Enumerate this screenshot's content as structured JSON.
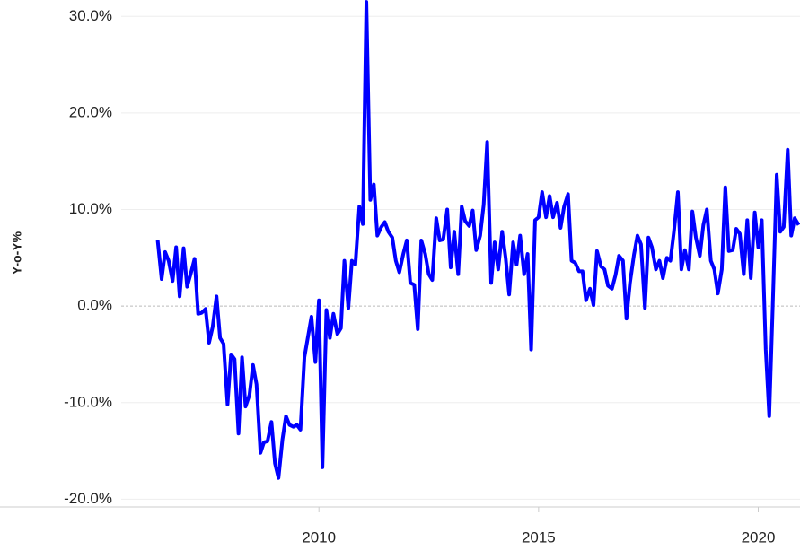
{
  "chart_data": {
    "type": "line",
    "y_label": "Y-o-Y%",
    "xlim": [
      2005.5,
      2020.95
    ],
    "xticks": [
      2010,
      2015,
      2020
    ],
    "ylim": [
      -20.8,
      31.7
    ],
    "yticks": [
      {
        "value": -20,
        "label": "-20.0%"
      },
      {
        "value": -10,
        "label": "-10.0%"
      },
      {
        "value": 0,
        "label": "0.0%"
      },
      {
        "value": 10,
        "label": "10.0%"
      },
      {
        "value": 20,
        "label": "20.0%"
      },
      {
        "value": 30,
        "label": "30.0%"
      }
    ],
    "grid": true,
    "series": [
      {
        "name": "Y-o-Y%",
        "color": "#0000ff",
        "x": [
          2006.33,
          2006.42,
          2006.5,
          2006.58,
          2006.67,
          2006.75,
          2006.83,
          2006.92,
          2007.0,
          2007.08,
          2007.17,
          2007.25,
          2007.33,
          2007.42,
          2007.5,
          2007.58,
          2007.67,
          2007.75,
          2007.83,
          2007.92,
          2008.0,
          2008.08,
          2008.17,
          2008.25,
          2008.33,
          2008.42,
          2008.5,
          2008.58,
          2008.67,
          2008.75,
          2008.83,
          2008.92,
          2009.0,
          2009.08,
          2009.17,
          2009.25,
          2009.33,
          2009.42,
          2009.5,
          2009.58,
          2009.67,
          2009.75,
          2009.83,
          2009.92,
          2010.0,
          2010.08,
          2010.17,
          2010.25,
          2010.33,
          2010.42,
          2010.5,
          2010.58,
          2010.67,
          2010.75,
          2010.83,
          2010.92,
          2011.0,
          2011.08,
          2011.17,
          2011.25,
          2011.33,
          2011.42,
          2011.5,
          2011.58,
          2011.67,
          2011.75,
          2011.83,
          2011.92,
          2012.0,
          2012.08,
          2012.17,
          2012.25,
          2012.33,
          2012.42,
          2012.5,
          2012.58,
          2012.67,
          2012.75,
          2012.83,
          2012.92,
          2013.0,
          2013.08,
          2013.17,
          2013.25,
          2013.33,
          2013.42,
          2013.5,
          2013.58,
          2013.67,
          2013.75,
          2013.83,
          2013.92,
          2014.0,
          2014.08,
          2014.17,
          2014.25,
          2014.33,
          2014.42,
          2014.5,
          2014.58,
          2014.67,
          2014.75,
          2014.83,
          2014.92,
          2015.0,
          2015.08,
          2015.17,
          2015.25,
          2015.33,
          2015.42,
          2015.5,
          2015.58,
          2015.67,
          2015.75,
          2015.83,
          2015.92,
          2016.0,
          2016.08,
          2016.17,
          2016.25,
          2016.33,
          2016.42,
          2016.5,
          2016.58,
          2016.67,
          2016.75,
          2016.83,
          2016.92,
          2017.0,
          2017.08,
          2017.17,
          2017.25,
          2017.33,
          2017.42,
          2017.5,
          2017.58,
          2017.67,
          2017.75,
          2017.83,
          2017.92,
          2018.0,
          2018.08,
          2018.17,
          2018.25,
          2018.33,
          2018.42,
          2018.5,
          2018.58,
          2018.67,
          2018.75,
          2018.83,
          2018.92,
          2019.0,
          2019.08,
          2019.17,
          2019.25,
          2019.33,
          2019.42,
          2019.5,
          2019.58,
          2019.67,
          2019.75,
          2019.83,
          2019.92,
          2020.0,
          2020.08,
          2020.17,
          2020.25,
          2020.33,
          2020.42,
          2020.5,
          2020.58,
          2020.67,
          2020.75,
          2020.83,
          2020.92
        ],
        "values": [
          6.8,
          2.8,
          5.6,
          4.7,
          2.6,
          6.1,
          1.0,
          6.0,
          2.0,
          3.3,
          4.9,
          -0.8,
          -0.7,
          -0.3,
          -3.8,
          -2.2,
          1.0,
          -3.3,
          -3.9,
          -10.2,
          -5.0,
          -5.5,
          -13.2,
          -5.3,
          -10.4,
          -9.2,
          -6.1,
          -8.1,
          -15.2,
          -14.1,
          -14.0,
          -12.0,
          -16.3,
          -17.8,
          -13.8,
          -11.4,
          -12.3,
          -12.5,
          -12.3,
          -12.8,
          -5.3,
          -3.2,
          -1.1,
          -5.8,
          0.6,
          -16.7,
          -0.4,
          -3.3,
          -0.8,
          -2.9,
          -2.3,
          4.7,
          -0.2,
          4.7,
          4.3,
          10.3,
          8.5,
          31.5,
          11.0,
          12.6,
          7.3,
          8.2,
          8.7,
          7.7,
          7.1,
          4.7,
          3.5,
          5.4,
          6.8,
          2.4,
          2.2,
          -2.4,
          6.8,
          5.4,
          3.3,
          2.7,
          9.1,
          6.8,
          6.9,
          10.0,
          4.0,
          7.7,
          3.3,
          10.3,
          8.8,
          8.3,
          9.9,
          5.8,
          7.3,
          10.5,
          17.0,
          2.4,
          6.6,
          3.8,
          7.7,
          5.0,
          1.2,
          6.6,
          4.3,
          7.3,
          3.3,
          5.4,
          -4.5,
          8.9,
          9.2,
          11.8,
          9.2,
          11.4,
          9.2,
          10.7,
          8.1,
          10.3,
          11.6,
          4.7,
          4.5,
          3.6,
          3.6,
          0.6,
          1.8,
          0.1,
          5.7,
          4.1,
          3.8,
          2.1,
          1.8,
          3.2,
          5.2,
          4.7,
          -1.3,
          2.4,
          5.3,
          7.3,
          6.4,
          -0.2,
          7.1,
          6.1,
          3.8,
          4.7,
          2.9,
          5.0,
          4.7,
          7.7,
          11.8,
          3.8,
          5.8,
          3.8,
          9.8,
          7.1,
          5.2,
          8.4,
          10.0,
          4.7,
          3.8,
          1.3,
          3.8,
          12.3,
          5.7,
          5.8,
          8.0,
          7.5,
          3.3,
          8.9,
          2.9,
          9.7,
          6.1,
          8.9,
          -4.5,
          -11.4,
          0.1,
          13.6,
          7.7,
          8.2,
          16.2,
          7.3,
          9.1,
          8.4
        ]
      }
    ]
  }
}
